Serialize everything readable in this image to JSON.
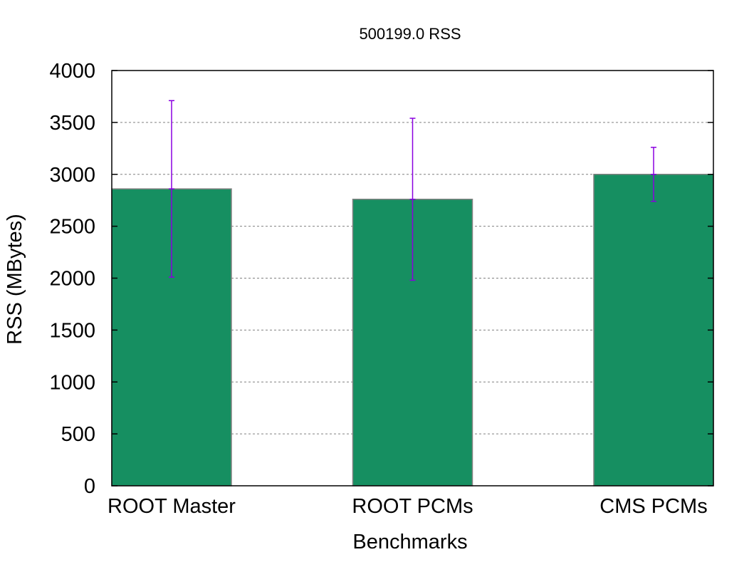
{
  "chart_data": {
    "type": "bar",
    "title": "500199.0 RSS",
    "xlabel": "Benchmarks",
    "ylabel": "RSS (MBytes)",
    "categories": [
      "ROOT Master",
      "ROOT PCMs",
      "CMS PCMs"
    ],
    "series": [
      {
        "values": [
          2860,
          2760,
          3000
        ],
        "error_low": [
          2010,
          1980,
          2740
        ],
        "error_high": [
          3710,
          3540,
          3260
        ]
      }
    ],
    "ylim": [
      0,
      4000
    ],
    "yticks": [
      0,
      500,
      1000,
      1500,
      2000,
      2500,
      3000,
      3500,
      4000
    ],
    "grid": "horizontal dotted",
    "colors": {
      "bar_fill": "#168f61",
      "bar_stroke": "#808080",
      "error_bar": "#8a00e0",
      "grid": "#808080",
      "frame": "#000000"
    }
  }
}
